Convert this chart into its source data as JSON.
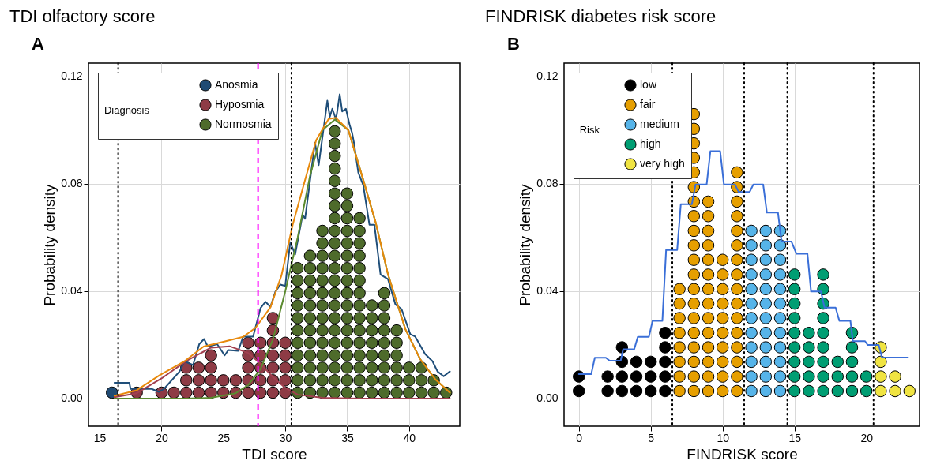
{
  "chart_data": [
    {
      "type": "scatter",
      "title": "TDI olfactory score",
      "annotations": [
        "A"
      ],
      "xlabel": "TDI score",
      "ylabel": "Probability density",
      "legend_title": "Diagnosis",
      "legend": "top left",
      "grid": true,
      "marker": "circle",
      "xlim": [
        14.1,
        44.1
      ],
      "ylim": [
        -0.0103,
        0.125
      ],
      "xticks": [
        15,
        20,
        25,
        30,
        35,
        40
      ],
      "yticks": [
        {
          "value": 0,
          "label": "0.00"
        },
        {
          "value": 0.04,
          "label": "0.04"
        },
        {
          "value": 0.08,
          "label": "0.08"
        },
        {
          "value": 0.12,
          "label": "0.12"
        }
      ],
      "ref_lines": [
        {
          "axis": "x",
          "value": 16.5,
          "color": "#000000",
          "line_style": "dotted"
        },
        {
          "axis": "x",
          "value": 30.5,
          "color": "#000000",
          "line_style": "dotted"
        },
        {
          "axis": "x",
          "value": 27.8,
          "color": "#ff00ff",
          "line_style": "dashed"
        }
      ],
      "series": [
        {
          "name": "Anosmia",
          "color": "#1f4a73",
          "x": [
            16
          ],
          "values": [
            0.0022
          ]
        },
        {
          "name": "Hyposmia",
          "color": "#8e3b45",
          "x": [
            18,
            20,
            21,
            22,
            22,
            22,
            23,
            23,
            23,
            24,
            24,
            24,
            24,
            25,
            25,
            26,
            26,
            27,
            27,
            27,
            27,
            27,
            28,
            28,
            28,
            28,
            28,
            29,
            29,
            29,
            29,
            29,
            29,
            29,
            30,
            30,
            30,
            30,
            30
          ],
          "values": [
            0.0022,
            0.0022,
            0.0022,
            0.0022,
            0.0068,
            0.0115,
            0.0022,
            0.0068,
            0.0115,
            0.0022,
            0.0068,
            0.0115,
            0.0161,
            0.0022,
            0.0068,
            0.0022,
            0.0068,
            0.0022,
            0.0068,
            0.0115,
            0.0161,
            0.0208,
            0.0022,
            0.0068,
            0.0115,
            0.0161,
            0.0208,
            0.0022,
            0.0068,
            0.0115,
            0.0161,
            0.0208,
            0.0254,
            0.03,
            0.0022,
            0.0068,
            0.0115,
            0.0161,
            0.0208
          ]
        },
        {
          "name": "Normosmia",
          "color": "#4e6b2b",
          "x": [
            31,
            31,
            31,
            31,
            31,
            31,
            31,
            31,
            31,
            31,
            31,
            32,
            32,
            32,
            32,
            32,
            32,
            32,
            32,
            32,
            32,
            32,
            32,
            33,
            33,
            33,
            33,
            33,
            33,
            33,
            33,
            33,
            33,
            33,
            33,
            33,
            33,
            34,
            34,
            34,
            34,
            34,
            34,
            34,
            34,
            34,
            34,
            34,
            34,
            34,
            34,
            34,
            34,
            34,
            34,
            34,
            34,
            34,
            34,
            35,
            35,
            35,
            35,
            35,
            35,
            35,
            35,
            35,
            35,
            35,
            35,
            35,
            35,
            35,
            35,
            35,
            36,
            36,
            36,
            36,
            36,
            36,
            36,
            36,
            36,
            36,
            36,
            36,
            36,
            36,
            36,
            37,
            37,
            37,
            37,
            37,
            37,
            37,
            37,
            38,
            38,
            38,
            38,
            38,
            38,
            38,
            38,
            38,
            39,
            39,
            39,
            39,
            39,
            39,
            40,
            40,
            40,
            41,
            41,
            41,
            42,
            42,
            43
          ],
          "values": [
            0.0022,
            0.0068,
            0.0115,
            0.0161,
            0.0208,
            0.0254,
            0.03,
            0.0347,
            0.0393,
            0.044,
            0.0486,
            0.0022,
            0.0068,
            0.0115,
            0.0161,
            0.0208,
            0.0254,
            0.03,
            0.0347,
            0.0393,
            0.044,
            0.0486,
            0.0532,
            0.0022,
            0.0068,
            0.0115,
            0.0161,
            0.0208,
            0.0254,
            0.03,
            0.0347,
            0.0393,
            0.044,
            0.0486,
            0.0532,
            0.0579,
            0.0625,
            0.0022,
            0.0068,
            0.0115,
            0.0161,
            0.0208,
            0.0254,
            0.03,
            0.0347,
            0.0393,
            0.044,
            0.0486,
            0.0532,
            0.0579,
            0.0625,
            0.0672,
            0.0718,
            0.0764,
            0.0811,
            0.0857,
            0.0904,
            0.095,
            0.0996,
            0.0022,
            0.0068,
            0.0115,
            0.0161,
            0.0208,
            0.0254,
            0.03,
            0.0347,
            0.0393,
            0.044,
            0.0486,
            0.0532,
            0.0579,
            0.0625,
            0.0672,
            0.0718,
            0.0764,
            0.0022,
            0.0068,
            0.0115,
            0.0161,
            0.0208,
            0.0254,
            0.03,
            0.0347,
            0.0393,
            0.044,
            0.0486,
            0.0532,
            0.0579,
            0.0625,
            0.0672,
            0.0022,
            0.0068,
            0.0115,
            0.0161,
            0.0208,
            0.0254,
            0.03,
            0.0347,
            0.0022,
            0.0068,
            0.0115,
            0.0161,
            0.0208,
            0.0254,
            0.03,
            0.0347,
            0.0393,
            0.0022,
            0.0068,
            0.0115,
            0.0161,
            0.0208,
            0.0254,
            0.0022,
            0.0068,
            0.0115,
            0.0022,
            0.0068,
            0.0115,
            0.0022,
            0.0068,
            0.0022
          ]
        },
        {
          "type": "line",
          "marker": "none",
          "color": "#1f4e79",
          "x": [
            16.2,
            17.4,
            17.5,
            19.2,
            19.8,
            20.2,
            21.46,
            21.86,
            22.55,
            23.05,
            23.44,
            23.74,
            24.5,
            25.1,
            25.4,
            26.2,
            26.6,
            27.4,
            28.0,
            28.4,
            28.8,
            29.2,
            29.6,
            30.0,
            30.4,
            30.8,
            31.4,
            31.6,
            32.4,
            32.7,
            33.4,
            33.6,
            33.8,
            34.1,
            34.4,
            34.6,
            34.9,
            35.2,
            35.4,
            35.55,
            35.9,
            36.3,
            36.8,
            37.2,
            37.7,
            38.3,
            38.9,
            39.4,
            40.1,
            40.5,
            41.3,
            41.9,
            42.3,
            42.8,
            43.3
          ],
          "values": [
            0.0059,
            0.0059,
            0.0036,
            0.0036,
            0.0025,
            0.0036,
            0.0101,
            0.0139,
            0.0125,
            0.0203,
            0.0222,
            0.0194,
            0.0203,
            0.0161,
            0.0181,
            0.0178,
            0.0231,
            0.0231,
            0.0337,
            0.0361,
            0.0342,
            0.0398,
            0.0425,
            0.042,
            0.0583,
            0.0537,
            0.0685,
            0.067,
            0.0954,
            0.087,
            0.111,
            0.105,
            0.108,
            0.104,
            0.1134,
            0.107,
            0.108,
            0.102,
            0.099,
            0.0954,
            0.0842,
            0.0795,
            0.0648,
            0.0648,
            0.0462,
            0.0445,
            0.0351,
            0.0333,
            0.024,
            0.0231,
            0.0166,
            0.0139,
            0.0101,
            0.0083,
            0.0101
          ]
        },
        {
          "type": "line",
          "marker": "none",
          "color": "#a24050",
          "x": [
            16.2,
            18,
            20,
            22,
            24,
            25.5,
            27,
            28,
            29,
            30,
            31,
            33,
            36,
            40,
            43.3
          ],
          "values": [
            0.0005,
            0.002,
            0.0075,
            0.014,
            0.019,
            0.0195,
            0.017,
            0.013,
            0.008,
            0.004,
            0.0015,
            0.0003,
            0,
            0,
            0
          ]
        },
        {
          "type": "line",
          "marker": "none",
          "color": "#5b8a30",
          "x": [
            16.2,
            22,
            24,
            26,
            27,
            28,
            29,
            30,
            31,
            32,
            33,
            34,
            35.1,
            36.3,
            37.3,
            38.3,
            39.7,
            40.9,
            42.1,
            43.3
          ],
          "values": [
            0,
            0,
            0.0003,
            0.002,
            0.005,
            0.011,
            0.022,
            0.04,
            0.06,
            0.083,
            0.1,
            0.104,
            0.1,
            0.0815,
            0.0657,
            0.0463,
            0.0259,
            0.0147,
            0.0073,
            0.0022
          ]
        },
        {
          "type": "line",
          "marker": "none",
          "color": "#e8890c",
          "x": [
            16.2,
            18,
            19.85,
            21.86,
            23.4,
            25.0,
            26.6,
            27.6,
            28.8,
            29.7,
            30.6,
            31.6,
            32.5,
            33.5,
            34.1,
            35.1,
            36.3,
            37.3,
            38.3,
            39.7,
            40.9,
            42.1,
            43.3
          ],
          "values": [
            0.001,
            0.0031,
            0.0087,
            0.0139,
            0.0194,
            0.0212,
            0.023,
            0.0264,
            0.034,
            0.046,
            0.0648,
            0.0815,
            0.0963,
            0.1042,
            0.1046,
            0.1,
            0.0815,
            0.0657,
            0.0463,
            0.0259,
            0.0147,
            0.0073,
            0.0022
          ]
        }
      ]
    },
    {
      "type": "scatter",
      "title": "FINDRISK diabetes risk score",
      "annotations": [
        "B"
      ],
      "xlabel": "FINDRISK score",
      "ylabel": "Probability density",
      "legend_title": "Risk",
      "legend": "top left",
      "grid": true,
      "marker": "circle",
      "xlim": [
        -1.03,
        23.7
      ],
      "ylim": [
        -0.0103,
        0.125
      ],
      "xticks": [
        0,
        5,
        10,
        15,
        20
      ],
      "yticks": [
        {
          "value": 0,
          "label": "0.00"
        },
        {
          "value": 0.04,
          "label": "0.04"
        },
        {
          "value": 0.08,
          "label": "0.08"
        },
        {
          "value": 0.12,
          "label": "0.12"
        }
      ],
      "ref_lines": [
        {
          "axis": "x",
          "value": 6.5,
          "color": "#000000",
          "line_style": "dotted"
        },
        {
          "axis": "x",
          "value": 11.5,
          "color": "#000000",
          "line_style": "dotted"
        },
        {
          "axis": "x",
          "value": 14.5,
          "color": "#000000",
          "line_style": "dotted"
        },
        {
          "axis": "x",
          "value": 20.5,
          "color": "#000000",
          "line_style": "dotted"
        }
      ],
      "series": [
        {
          "name": "low",
          "color": "#000000",
          "x": [
            0,
            0,
            2,
            2,
            3,
            3,
            3,
            3,
            4,
            4,
            4,
            5,
            5,
            5,
            6,
            6,
            6,
            6,
            6
          ],
          "values": [
            0.0028,
            0.0082,
            0.0028,
            0.0082,
            0.0028,
            0.0082,
            0.0137,
            0.0191,
            0.0028,
            0.0082,
            0.0137,
            0.0028,
            0.0082,
            0.0137,
            0.0028,
            0.0082,
            0.0137,
            0.0191,
            0.0245
          ]
        },
        {
          "name": "fair",
          "color": "#e69f00",
          "x": [
            7,
            7,
            7,
            7,
            7,
            7,
            7,
            7,
            8,
            8,
            8,
            8,
            8,
            8,
            8,
            8,
            8,
            8,
            8,
            8,
            8,
            8,
            8,
            8,
            8,
            8,
            8,
            8,
            9,
            9,
            9,
            9,
            9,
            9,
            9,
            9,
            9,
            9,
            9,
            9,
            9,
            9,
            10,
            10,
            10,
            10,
            10,
            10,
            10,
            10,
            10,
            10,
            11,
            11,
            11,
            11,
            11,
            11,
            11,
            11,
            11,
            11,
            11,
            11,
            11,
            11,
            11,
            11
          ],
          "values": [
            0.0028,
            0.0082,
            0.0137,
            0.0191,
            0.0245,
            0.03,
            0.0354,
            0.0408,
            0.0028,
            0.0082,
            0.0137,
            0.0191,
            0.0245,
            0.03,
            0.0354,
            0.0408,
            0.0462,
            0.0517,
            0.0571,
            0.0625,
            0.068,
            0.0734,
            0.0788,
            0.0843,
            0.0897,
            0.0951,
            0.1005,
            0.106,
            0.0028,
            0.0082,
            0.0137,
            0.0191,
            0.0245,
            0.03,
            0.0354,
            0.0408,
            0.0462,
            0.0517,
            0.0571,
            0.0625,
            0.068,
            0.0734,
            0.0028,
            0.0082,
            0.0137,
            0.0191,
            0.0245,
            0.03,
            0.0354,
            0.0408,
            0.0462,
            0.0517,
            0.0028,
            0.0082,
            0.0137,
            0.0191,
            0.0245,
            0.03,
            0.0354,
            0.0408,
            0.0462,
            0.0517,
            0.0571,
            0.0625,
            0.068,
            0.0734,
            0.0788,
            0.0843
          ]
        },
        {
          "name": "medium",
          "color": "#56b4e9",
          "x": [
            12,
            12,
            12,
            12,
            12,
            12,
            12,
            12,
            12,
            12,
            12,
            12,
            13,
            13,
            13,
            13,
            13,
            13,
            13,
            13,
            13,
            13,
            13,
            13,
            14,
            14,
            14,
            14,
            14,
            14,
            14,
            14,
            14,
            14,
            14,
            14
          ],
          "values": [
            0.0028,
            0.0082,
            0.0137,
            0.0191,
            0.0245,
            0.03,
            0.0354,
            0.0408,
            0.0462,
            0.0517,
            0.0571,
            0.0625,
            0.0028,
            0.0082,
            0.0137,
            0.0191,
            0.0245,
            0.03,
            0.0354,
            0.0408,
            0.0462,
            0.0517,
            0.0571,
            0.0625,
            0.0028,
            0.0082,
            0.0137,
            0.0191,
            0.0245,
            0.03,
            0.0354,
            0.0408,
            0.0462,
            0.0517,
            0.0571,
            0.0625
          ]
        },
        {
          "name": "high",
          "color": "#009e73",
          "x": [
            15,
            15,
            15,
            15,
            15,
            15,
            15,
            15,
            15,
            16,
            16,
            16,
            16,
            16,
            17,
            17,
            17,
            17,
            17,
            17,
            17,
            17,
            17,
            18,
            18,
            18,
            19,
            19,
            19,
            19,
            19,
            20,
            20
          ],
          "values": [
            0.0028,
            0.0082,
            0.0137,
            0.0191,
            0.0245,
            0.03,
            0.0354,
            0.0408,
            0.0462,
            0.0028,
            0.0082,
            0.0137,
            0.0191,
            0.0245,
            0.0028,
            0.0082,
            0.0137,
            0.0191,
            0.0245,
            0.03,
            0.0354,
            0.0408,
            0.0462,
            0.0028,
            0.0082,
            0.0137,
            0.0028,
            0.0082,
            0.0137,
            0.0191,
            0.0245,
            0.0028,
            0.0082
          ]
        },
        {
          "name": "very high",
          "color": "#f0e442",
          "x": [
            21,
            21,
            21,
            21,
            22,
            22,
            23
          ],
          "values": [
            0.0028,
            0.0082,
            0.0137,
            0.0191,
            0.0028,
            0.0082,
            0.0028
          ]
        },
        {
          "type": "line",
          "marker": "none",
          "color": "#3a6fd8",
          "x": [
            0,
            0.86,
            1.11,
            1.88,
            2.14,
            2.91,
            3.08,
            3.85,
            4.1,
            4.87,
            5.13,
            5.81,
            6.07,
            6.84,
            7.09,
            7.86,
            8.12,
            8.89,
            9.15,
            9.83,
            10.09,
            10.86,
            11.11,
            11.88,
            12.14,
            12.82,
            13.08,
            13.85,
            14.1,
            14.79,
            15.13,
            15.9,
            16.15,
            16.84,
            17.09,
            17.86,
            18.12,
            18.89,
            19.06,
            19.91,
            20.09,
            20.86,
            21.09,
            22.9
          ],
          "values": [
            0.0091,
            0.0091,
            0.0152,
            0.0152,
            0.0141,
            0.0141,
            0.0184,
            0.0184,
            0.023,
            0.023,
            0.029,
            0.029,
            0.0554,
            0.0554,
            0.0724,
            0.0724,
            0.0798,
            0.0798,
            0.0922,
            0.0922,
            0.0798,
            0.0798,
            0.077,
            0.077,
            0.0798,
            0.0798,
            0.0693,
            0.0693,
            0.0585,
            0.0585,
            0.054,
            0.054,
            0.0399,
            0.0399,
            0.0339,
            0.0339,
            0.029,
            0.029,
            0.0214,
            0.0214,
            0.02,
            0.02,
            0.0153,
            0.0153
          ]
        }
      ]
    }
  ]
}
